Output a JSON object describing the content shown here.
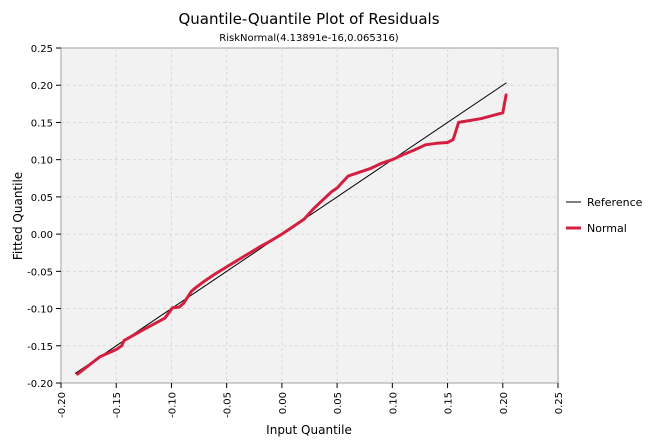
{
  "chart_data": {
    "type": "line",
    "title": "Quantile-Quantile Plot of Residuals",
    "subtitle": "RiskNormal(4.13891e-16,0.065316)",
    "xlabel": "Input Quantile",
    "ylabel": "Fitted Quantile",
    "xlim": [
      -0.2,
      0.25
    ],
    "ylim": [
      -0.2,
      0.25
    ],
    "x_ticks": [
      "-0.20",
      "-0.15",
      "-0.10",
      "-0.05",
      "0.00",
      "0.05",
      "0.10",
      "0.15",
      "0.20",
      "0.25"
    ],
    "y_ticks": [
      "0.25",
      "0.20",
      "0.15",
      "0.10",
      "0.05",
      "0.00",
      "-0.05",
      "-0.10",
      "-0.15",
      "-0.20"
    ],
    "grid": true,
    "legend_position": "right",
    "series": [
      {
        "name": "Reference",
        "color": "#000000",
        "x": [
          -0.187,
          0.203
        ],
        "y": [
          -0.187,
          0.203
        ]
      },
      {
        "name": "Normal",
        "color": "#d42040",
        "x": [
          -0.185,
          -0.165,
          -0.15,
          -0.145,
          -0.143,
          -0.125,
          -0.106,
          -0.102,
          -0.099,
          -0.093,
          -0.089,
          -0.082,
          -0.078,
          -0.07,
          -0.06,
          -0.05,
          -0.04,
          -0.03,
          -0.02,
          -0.01,
          0.0,
          0.01,
          0.02,
          0.028,
          0.035,
          0.04,
          0.045,
          0.05,
          0.055,
          0.06,
          0.07,
          0.08,
          0.09,
          0.1,
          0.11,
          0.12,
          0.13,
          0.14,
          0.15,
          0.155,
          0.157,
          0.16,
          0.18,
          0.2,
          0.203
        ],
        "y": [
          -0.188,
          -0.165,
          -0.155,
          -0.15,
          -0.143,
          -0.128,
          -0.113,
          -0.105,
          -0.099,
          -0.098,
          -0.093,
          -0.077,
          -0.072,
          -0.063,
          -0.053,
          -0.044,
          -0.035,
          -0.026,
          -0.017,
          -0.009,
          0.0,
          0.01,
          0.02,
          0.033,
          0.043,
          0.05,
          0.057,
          0.062,
          0.07,
          0.078,
          0.083,
          0.088,
          0.095,
          0.1,
          0.107,
          0.113,
          0.12,
          0.122,
          0.123,
          0.127,
          0.136,
          0.15,
          0.155,
          0.163,
          0.187
        ]
      }
    ]
  }
}
